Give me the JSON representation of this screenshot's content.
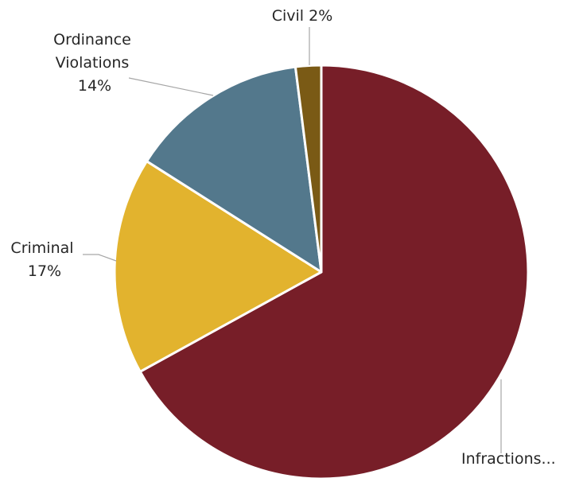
{
  "chart_data": {
    "type": "pie",
    "title": "",
    "start_angle_deg": 0,
    "direction": "clockwise",
    "slices": [
      {
        "category": "Infractions",
        "value": 67,
        "color": "#771e28",
        "label_lines": [
          "Infractions..."
        ]
      },
      {
        "category": "Criminal",
        "value": 17,
        "color": "#e2b32e",
        "label_lines": [
          "Criminal",
          "17%"
        ]
      },
      {
        "category": "Ordinance Violations",
        "value": 14,
        "color": "#53788c",
        "label_lines": [
          "Ordinance",
          "Violations",
          "14%"
        ]
      },
      {
        "category": "Civil",
        "value": 2,
        "color": "#7a5a15",
        "label_lines": [
          "Civil 2%"
        ]
      }
    ]
  }
}
